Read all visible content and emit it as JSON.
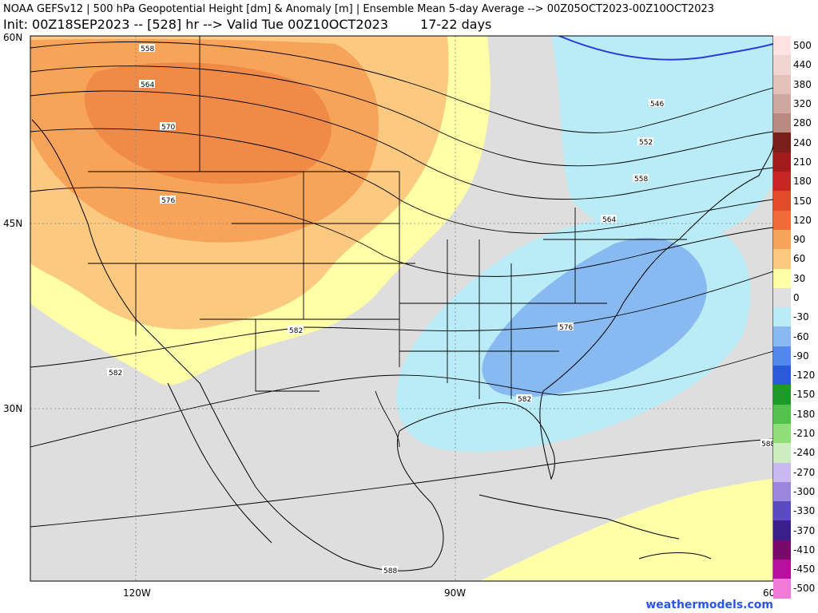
{
  "header": {
    "line1": "NOAA GEFSv12 | 500 hPa Geopotential Height [dm] & Anomaly [m] | Ensemble Mean 5-day Average --> 00Z05OCT2023-00Z10OCT2023",
    "line2": "Init: 00Z18SEP2023 -- [528] hr --> Valid Tue 00Z10OCT2023",
    "range": "17-22 days"
  },
  "axes": {
    "lat_labels": [
      "60N",
      "45N",
      "30N"
    ],
    "lon_labels": [
      "120W",
      "90W",
      "60"
    ]
  },
  "contour_labels": [
    "558",
    "564",
    "570",
    "576",
    "582",
    "582",
    "546",
    "552",
    "558",
    "564",
    "576",
    "582",
    "588",
    "588"
  ],
  "colorbar": {
    "levels": [
      {
        "label": "500",
        "color": "#ffe2e2"
      },
      {
        "label": "440",
        "color": "#f1d5d0"
      },
      {
        "label": "380",
        "color": "#e3c1b9"
      },
      {
        "label": "320",
        "color": "#cfa89f"
      },
      {
        "label": "280",
        "color": "#b98a80"
      },
      {
        "label": "240",
        "color": "#7a1f1a"
      },
      {
        "label": "210",
        "color": "#a11c1c"
      },
      {
        "label": "180",
        "color": "#c92525"
      },
      {
        "label": "150",
        "color": "#e34a2a"
      },
      {
        "label": "120",
        "color": "#f06b3a"
      },
      {
        "label": "90",
        "color": "#f7a35a"
      },
      {
        "label": "60",
        "color": "#fbc97f"
      },
      {
        "label": "30",
        "color": "#ffffa8"
      },
      {
        "label": "0",
        "color": "#e0e0e0"
      },
      {
        "label": "-30",
        "color": "#b9ecf7"
      },
      {
        "label": "-60",
        "color": "#88b9f0"
      },
      {
        "label": "-90",
        "color": "#5389ea"
      },
      {
        "label": "-120",
        "color": "#2a5ad8"
      },
      {
        "label": "-150",
        "color": "#1d9a2a"
      },
      {
        "label": "-180",
        "color": "#53c24d"
      },
      {
        "label": "-210",
        "color": "#90dd7a"
      },
      {
        "label": "-240",
        "color": "#cdeec0"
      },
      {
        "label": "-270",
        "color": "#c9b9f0"
      },
      {
        "label": "-300",
        "color": "#9a86dd"
      },
      {
        "label": "-330",
        "color": "#5a4cc0"
      },
      {
        "label": "-370",
        "color": "#3a1e8a"
      },
      {
        "label": "-410",
        "color": "#7a0a6a"
      },
      {
        "label": "-450",
        "color": "#b8109e"
      },
      {
        "label": "-500",
        "color": "#f07ad8"
      }
    ]
  },
  "credit": "weathermodels.com"
}
